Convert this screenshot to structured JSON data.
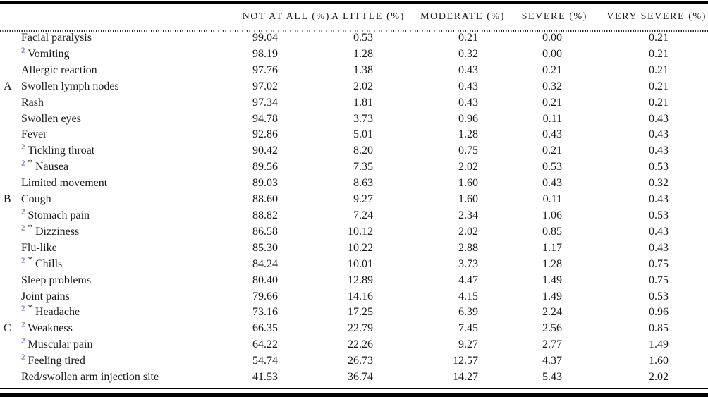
{
  "colors": {
    "footnote_marker_blue": "#3c3cd2",
    "text": "#1a1a1a",
    "rule_black": "#000000"
  },
  "table": {
    "columns": [
      "NOT AT ALL (%)",
      "A LITTLE (%)",
      "MODERATE (%)",
      "SEVERE (%)",
      "VERY SEVERE (%)"
    ],
    "rows": [
      {
        "group": "",
        "fn2": "",
        "star": "",
        "symptom": "Facial paralysis",
        "values": [
          "99.04",
          "0.53",
          "0.21",
          "0.00",
          "0.21"
        ]
      },
      {
        "group": "",
        "fn2": "2",
        "star": "",
        "symptom": "Vomiting",
        "values": [
          "98.19",
          "1.28",
          "0.32",
          "0.00",
          "0.21"
        ]
      },
      {
        "group": "",
        "fn2": "",
        "star": "",
        "symptom": "Allergic reaction",
        "values": [
          "97.76",
          "1.38",
          "0.43",
          "0.21",
          "0.21"
        ]
      },
      {
        "group": "A",
        "fn2": "",
        "star": "",
        "symptom": "Swollen lymph nodes",
        "values": [
          "97.02",
          "2.02",
          "0.43",
          "0.32",
          "0.21"
        ]
      },
      {
        "group": "",
        "fn2": "",
        "star": "",
        "symptom": "Rash",
        "values": [
          "97.34",
          "1.81",
          "0.43",
          "0.21",
          "0.21"
        ]
      },
      {
        "group": "",
        "fn2": "",
        "star": "",
        "symptom": "Swollen eyes",
        "values": [
          "94.78",
          "3.73",
          "0.96",
          "0.11",
          "0.43"
        ]
      },
      {
        "group": "",
        "fn2": "",
        "star": "",
        "symptom": "Fever",
        "values": [
          "92.86",
          "5.01",
          "1.28",
          "0.43",
          "0.43"
        ]
      },
      {
        "group": "",
        "fn2": "2",
        "star": "",
        "symptom": "Tickling throat",
        "values": [
          "90.42",
          "8.20",
          "0.75",
          "0.21",
          "0.43"
        ]
      },
      {
        "group": "",
        "fn2": "2",
        "star": "*",
        "symptom": "Nausea",
        "values": [
          "89.56",
          "7.35",
          "2.02",
          "0.53",
          "0.53"
        ]
      },
      {
        "group": "",
        "fn2": "",
        "star": "",
        "symptom": "Limited movement",
        "values": [
          "89.03",
          "8.63",
          "1.60",
          "0.43",
          "0.32"
        ]
      },
      {
        "group": "B",
        "fn2": "",
        "star": "",
        "symptom": "Cough",
        "values": [
          "88.60",
          "9.27",
          "1.60",
          "0.11",
          "0.43"
        ]
      },
      {
        "group": "",
        "fn2": "2",
        "star": "",
        "symptom": "Stomach pain",
        "values": [
          "88.82",
          "7.24",
          "2.34",
          "1.06",
          "0.53"
        ]
      },
      {
        "group": "",
        "fn2": "2",
        "star": "*",
        "symptom": "Dizziness",
        "values": [
          "86.58",
          "10.12",
          "2.02",
          "0.85",
          "0.43"
        ]
      },
      {
        "group": "",
        "fn2": "",
        "star": "",
        "symptom": "Flu-like",
        "values": [
          "85.30",
          "10.22",
          "2.88",
          "1.17",
          "0.43"
        ]
      },
      {
        "group": "",
        "fn2": "2",
        "star": "*",
        "symptom": "Chills",
        "values": [
          "84.24",
          "10.01",
          "3.73",
          "1.28",
          "0.75"
        ]
      },
      {
        "group": "",
        "fn2": "",
        "star": "",
        "symptom": "Sleep problems",
        "values": [
          "80.40",
          "12.89",
          "4.47",
          "1.49",
          "0.75"
        ]
      },
      {
        "group": "",
        "fn2": "",
        "star": "",
        "symptom": "Joint pains",
        "values": [
          "79.66",
          "14.16",
          "4.15",
          "1.49",
          "0.53"
        ]
      },
      {
        "group": "",
        "fn2": "2",
        "star": "*",
        "symptom": "Headache",
        "values": [
          "73.16",
          "17.25",
          "6.39",
          "2.24",
          "0.96"
        ]
      },
      {
        "group": "C",
        "fn2": "2",
        "star": "",
        "symptom": "Weakness",
        "values": [
          "66.35",
          "22.79",
          "7.45",
          "2.56",
          "0.85"
        ]
      },
      {
        "group": "",
        "fn2": "2",
        "star": "",
        "symptom": "Muscular pain",
        "values": [
          "64.22",
          "22.26",
          "9.27",
          "2.77",
          "1.49"
        ]
      },
      {
        "group": "",
        "fn2": "2",
        "star": "",
        "symptom": "Feeling tired",
        "values": [
          "54.74",
          "26.73",
          "12.57",
          "4.37",
          "1.60"
        ]
      },
      {
        "group": "",
        "fn2": "",
        "star": "",
        "symptom": "Red/swollen arm injection site",
        "values": [
          "41.53",
          "36.74",
          "14.27",
          "5.43",
          "2.02"
        ]
      }
    ]
  }
}
